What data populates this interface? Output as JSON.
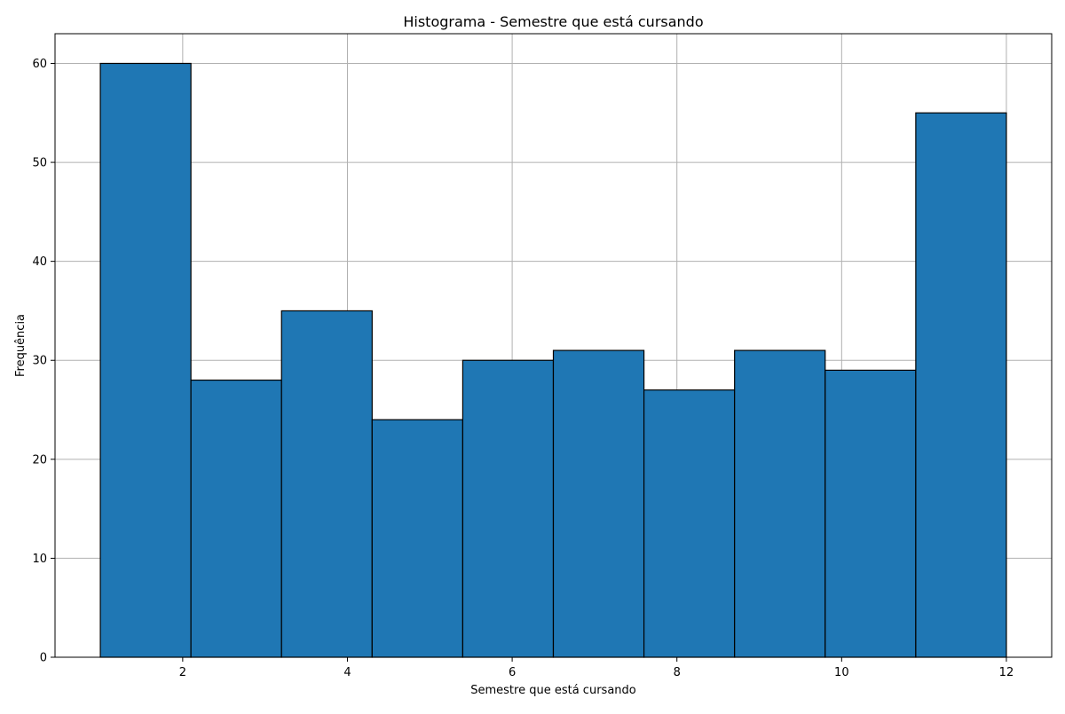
{
  "chart_data": {
    "type": "bar",
    "histogram": true,
    "title": "Histograma - Semestre que está cursando",
    "xlabel": "Semestre que está cursando",
    "ylabel": "Frequência",
    "bin_edges": [
      1.0,
      2.1,
      3.2,
      4.3,
      5.4,
      6.5,
      7.6,
      8.7,
      9.8,
      10.9,
      12.0
    ],
    "values": [
      60,
      28,
      35,
      24,
      30,
      31,
      27,
      31,
      29,
      55
    ],
    "xlim": [
      0.45,
      12.55
    ],
    "ylim": [
      0,
      63
    ],
    "x_ticks": [
      2,
      4,
      6,
      8,
      10,
      12
    ],
    "x_tick_labels": [
      "2",
      "4",
      "6",
      "8",
      "10",
      "12"
    ],
    "y_ticks": [
      0,
      10,
      20,
      30,
      40,
      50,
      60
    ],
    "y_tick_labels": [
      "0",
      "10",
      "20",
      "30",
      "40",
      "50",
      "60"
    ],
    "grid": true,
    "bar_color": "#1f77b4",
    "edge_color": "#000000",
    "grid_color": "#b0b0b0"
  }
}
